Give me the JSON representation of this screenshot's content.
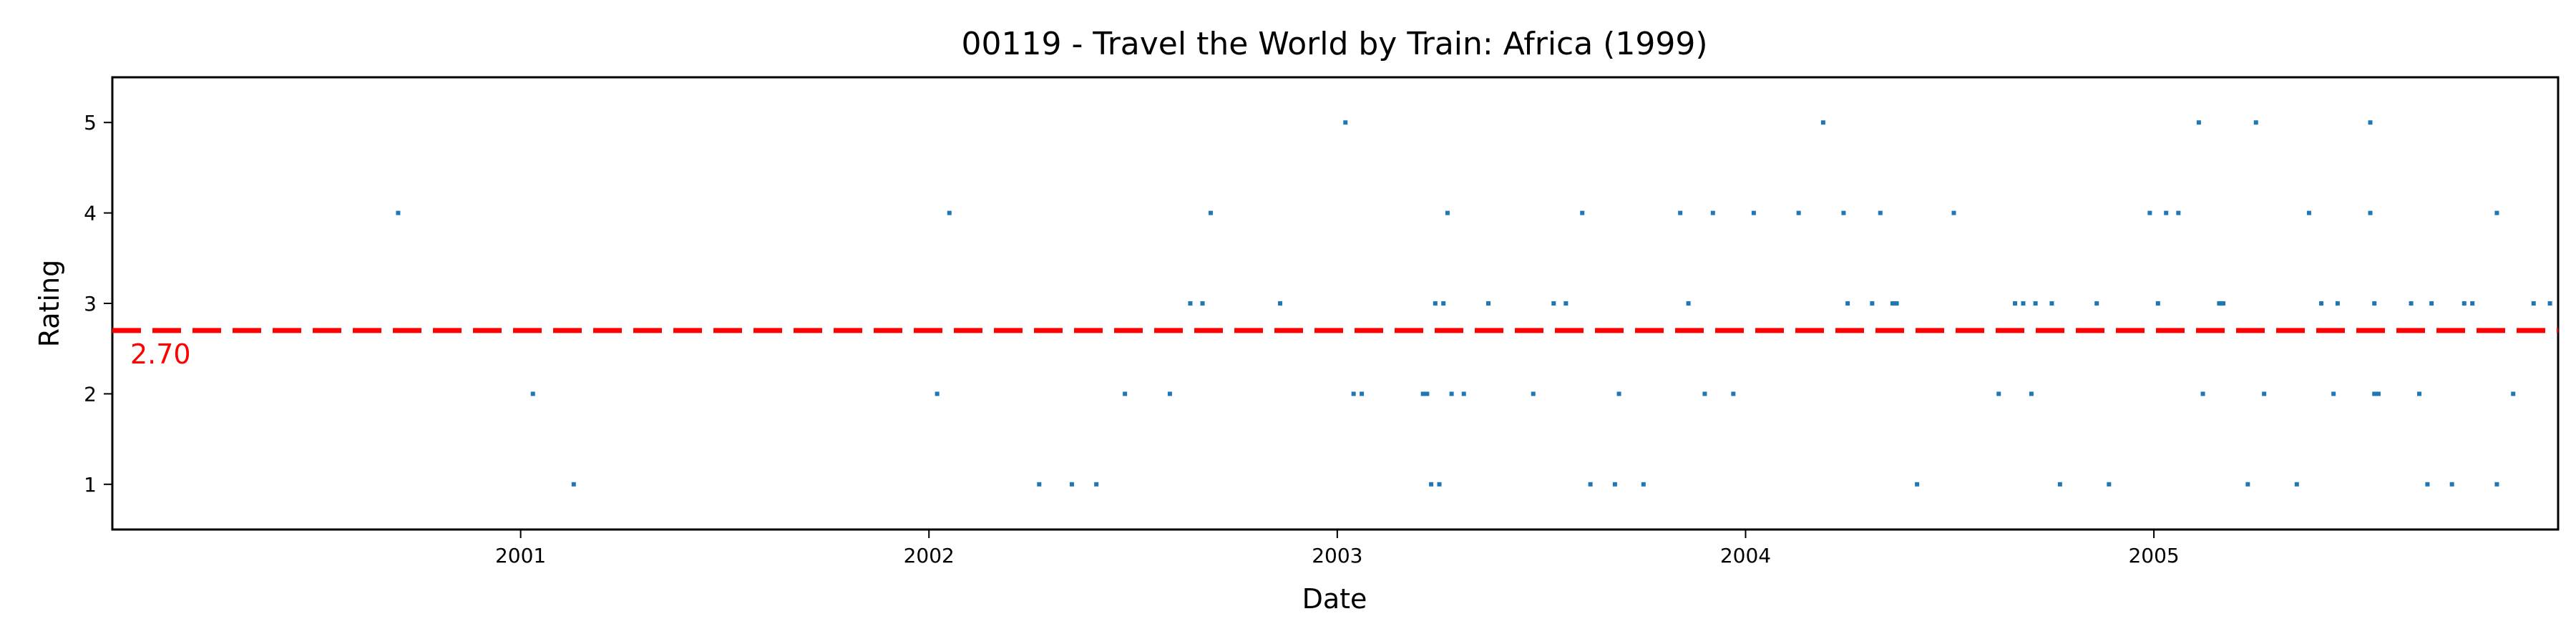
{
  "chart_data": {
    "type": "scatter",
    "title": "00119 - Travel the World by Train: Africa (1999)",
    "xlabel": "Date",
    "ylabel": "Rating",
    "xlim": [
      2000.0,
      2005.99
    ],
    "ylim": [
      0.5,
      5.5
    ],
    "x_ticks": [
      {
        "value": 2001,
        "label": "2001"
      },
      {
        "value": 2002,
        "label": "2002"
      },
      {
        "value": 2003,
        "label": "2003"
      },
      {
        "value": 2004,
        "label": "2004"
      },
      {
        "value": 2005,
        "label": "2005"
      }
    ],
    "y_ticks": [
      {
        "value": 1,
        "label": "1"
      },
      {
        "value": 2,
        "label": "2"
      },
      {
        "value": 3,
        "label": "3"
      },
      {
        "value": 4,
        "label": "4"
      },
      {
        "value": 5,
        "label": "5"
      }
    ],
    "mean_line": {
      "value": 2.7,
      "label": "2.70"
    },
    "point_color": "#1f77b4",
    "mean_color": "#ff0000",
    "series": [
      {
        "name": "ratings",
        "points": [
          [
            2000.7,
            4
          ],
          [
            2001.03,
            2
          ],
          [
            2001.13,
            1
          ],
          [
            2002.02,
            2
          ],
          [
            2002.05,
            4
          ],
          [
            2002.27,
            1
          ],
          [
            2002.35,
            1
          ],
          [
            2002.41,
            1
          ],
          [
            2002.48,
            2
          ],
          [
            2002.59,
            2
          ],
          [
            2002.64,
            3
          ],
          [
            2002.67,
            3
          ],
          [
            2002.69,
            4
          ],
          [
            2002.86,
            3
          ],
          [
            2003.02,
            5
          ],
          [
            2003.04,
            2
          ],
          [
            2003.06,
            2
          ],
          [
            2003.21,
            2
          ],
          [
            2003.22,
            2
          ],
          [
            2003.23,
            1
          ],
          [
            2003.24,
            3
          ],
          [
            2003.25,
            1
          ],
          [
            2003.26,
            3
          ],
          [
            2003.27,
            4
          ],
          [
            2003.28,
            2
          ],
          [
            2003.31,
            2
          ],
          [
            2003.37,
            3
          ],
          [
            2003.48,
            2
          ],
          [
            2003.53,
            3
          ],
          [
            2003.56,
            3
          ],
          [
            2003.6,
            4
          ],
          [
            2003.62,
            1
          ],
          [
            2003.68,
            1
          ],
          [
            2003.69,
            2
          ],
          [
            2003.75,
            1
          ],
          [
            2003.84,
            4
          ],
          [
            2003.86,
            3
          ],
          [
            2003.9,
            2
          ],
          [
            2003.92,
            4
          ],
          [
            2003.97,
            2
          ],
          [
            2004.02,
            4
          ],
          [
            2004.13,
            4
          ],
          [
            2004.19,
            5
          ],
          [
            2004.24,
            4
          ],
          [
            2004.25,
            3
          ],
          [
            2004.31,
            3
          ],
          [
            2004.33,
            4
          ],
          [
            2004.36,
            3
          ],
          [
            2004.37,
            3
          ],
          [
            2004.42,
            1
          ],
          [
            2004.51,
            4
          ],
          [
            2004.62,
            2
          ],
          [
            2004.66,
            3
          ],
          [
            2004.68,
            3
          ],
          [
            2004.7,
            2
          ],
          [
            2004.71,
            3
          ],
          [
            2004.75,
            3
          ],
          [
            2004.77,
            1
          ],
          [
            2004.86,
            3
          ],
          [
            2004.89,
            1
          ],
          [
            2004.99,
            4
          ],
          [
            2005.01,
            3
          ],
          [
            2005.03,
            4
          ],
          [
            2005.06,
            4
          ],
          [
            2005.11,
            5
          ],
          [
            2005.12,
            2
          ],
          [
            2005.16,
            3
          ],
          [
            2005.17,
            3
          ],
          [
            2005.23,
            1
          ],
          [
            2005.25,
            5
          ],
          [
            2005.27,
            2
          ],
          [
            2005.35,
            1
          ],
          [
            2005.38,
            4
          ],
          [
            2005.41,
            3
          ],
          [
            2005.44,
            2
          ],
          [
            2005.45,
            3
          ],
          [
            2005.53,
            4
          ],
          [
            2005.53,
            5
          ],
          [
            2005.54,
            3
          ],
          [
            2005.54,
            2
          ],
          [
            2005.55,
            2
          ],
          [
            2005.63,
            3
          ],
          [
            2005.65,
            2
          ],
          [
            2005.67,
            1
          ],
          [
            2005.68,
            3
          ],
          [
            2005.73,
            1
          ],
          [
            2005.76,
            3
          ],
          [
            2005.78,
            3
          ],
          [
            2005.84,
            1
          ],
          [
            2005.84,
            4
          ],
          [
            2005.88,
            2
          ],
          [
            2005.93,
            3
          ],
          [
            2005.97,
            3
          ]
        ]
      }
    ]
  }
}
